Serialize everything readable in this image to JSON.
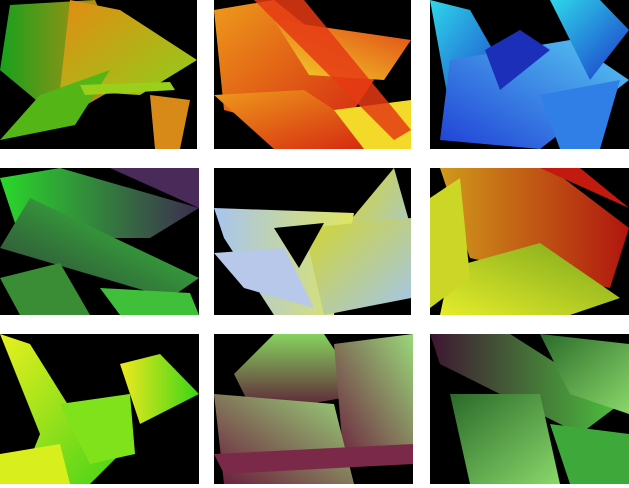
{
  "gallery": {
    "tiles": [
      {
        "id": "t1",
        "palette": "green-orange",
        "colors": [
          "#1f9e1a",
          "#e58a12",
          "#a7d81c"
        ]
      },
      {
        "id": "t2",
        "palette": "red-yellow",
        "colors": [
          "#d9230f",
          "#f0a31a",
          "#f5e52a"
        ]
      },
      {
        "id": "t3",
        "palette": "blue-cyan",
        "colors": [
          "#1e3bd8",
          "#2fd3e8",
          "#4a6df0"
        ]
      },
      {
        "id": "t4",
        "palette": "green-purple",
        "colors": [
          "#2fd52e",
          "#3f2a52",
          "#5fa83a"
        ]
      },
      {
        "id": "t5",
        "palette": "yellow-lightblue",
        "colors": [
          "#c9d12b",
          "#9ec2f0",
          "#e4e86a"
        ]
      },
      {
        "id": "t6",
        "palette": "red-yellow-green",
        "colors": [
          "#b4160f",
          "#d7e526",
          "#6fa01f"
        ]
      },
      {
        "id": "t7",
        "palette": "yellow-green",
        "colors": [
          "#e7ef1d",
          "#42d317",
          "#a6e21a"
        ]
      },
      {
        "id": "t8",
        "palette": "green-maroon",
        "colors": [
          "#7bcf55",
          "#5b1436",
          "#9ad874"
        ]
      },
      {
        "id": "t9",
        "palette": "green-maroon-dark",
        "colors": [
          "#46b53b",
          "#3b122b",
          "#8ad668"
        ]
      }
    ]
  }
}
